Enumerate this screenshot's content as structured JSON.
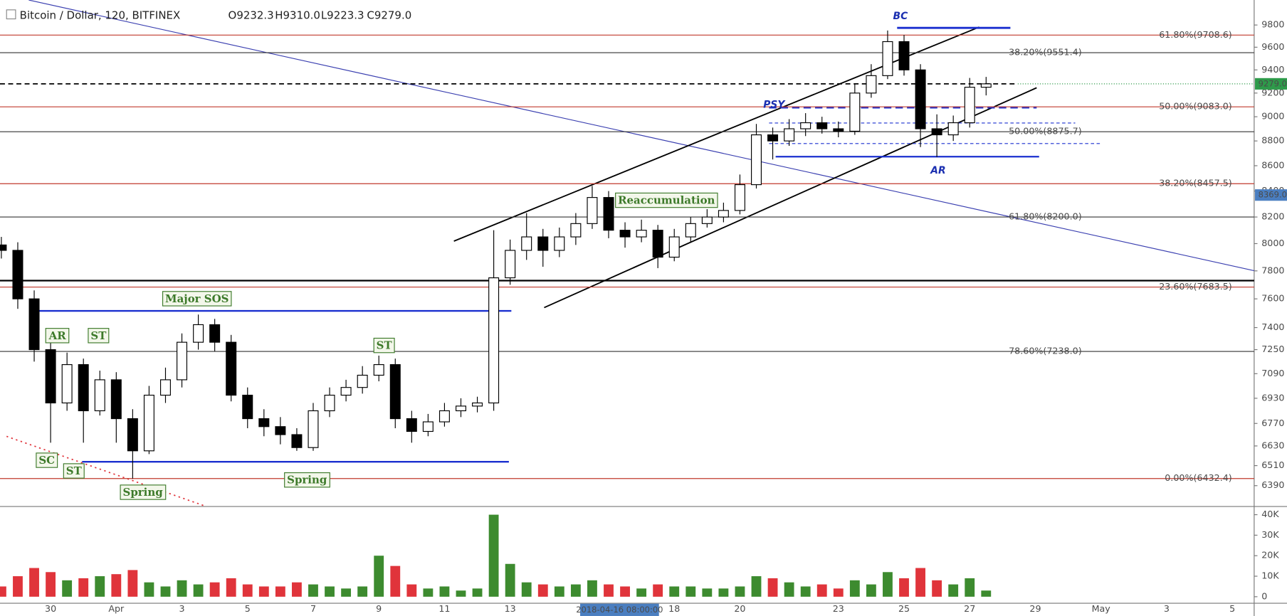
{
  "chart_data": [
    {
      "type": "candlestick",
      "title": "Bitcoin / Dollar, 120, BITFINEX",
      "ohlc": [
        "O9232.3",
        "H9310.0",
        "L9223.3",
        "C9279.0"
      ],
      "crosshair_label": "2018-04-16 08:00:00",
      "log_scale": true,
      "ylim": [
        6270,
        10030
      ],
      "yticks": [
        9800,
        9600,
        9400,
        9200,
        9000,
        8800,
        8600,
        8400,
        8200,
        8000,
        7800,
        7600,
        7400,
        7250,
        7090,
        6930,
        6770,
        6630,
        6510,
        6390
      ],
      "xlim": [
        "2018-03-28 11:00",
        "2018-05-05 16:00"
      ],
      "xticks": [
        {
          "value": "2018-03-30 00:00",
          "label": "30"
        },
        {
          "value": "2018-04-01 00:00",
          "label": "Apr"
        },
        {
          "value": "2018-04-03 00:00",
          "label": "3"
        },
        {
          "value": "2018-04-05 00:00",
          "label": "5"
        },
        {
          "value": "2018-04-07 00:00",
          "label": "7"
        },
        {
          "value": "2018-04-09 00:00",
          "label": "9"
        },
        {
          "value": "2018-04-11 00:00",
          "label": "11"
        },
        {
          "value": "2018-04-13 00:00",
          "label": "13"
        },
        {
          "value": "2018-04-18 00:00",
          "label": "18"
        },
        {
          "value": "2018-04-20 00:00",
          "label": "20"
        },
        {
          "value": "2018-04-23 00:00",
          "label": "23"
        },
        {
          "value": "2018-04-25 00:00",
          "label": "25"
        },
        {
          "value": "2018-04-27 00:00",
          "label": "27"
        },
        {
          "value": "2018-04-29 00:00",
          "label": "29"
        },
        {
          "value": "2018-05-01 00:00",
          "label": "May"
        },
        {
          "value": "2018-05-03 00:00",
          "label": "3"
        },
        {
          "value": "2018-05-05 00:00",
          "label": "5"
        }
      ],
      "up_color": "#ffffff",
      "down_color": "#000000",
      "x": [
        "2018-03-28 12:00",
        "2018-03-29 00:00",
        "2018-03-29 12:00",
        "2018-03-30 00:00",
        "2018-03-30 12:00",
        "2018-03-31 00:00",
        "2018-03-31 12:00",
        "2018-04-01 00:00",
        "2018-04-01 12:00",
        "2018-04-02 00:00",
        "2018-04-02 12:00",
        "2018-04-03 00:00",
        "2018-04-03 12:00",
        "2018-04-04 00:00",
        "2018-04-04 12:00",
        "2018-04-05 00:00",
        "2018-04-05 12:00",
        "2018-04-06 00:00",
        "2018-04-06 12:00",
        "2018-04-07 00:00",
        "2018-04-07 12:00",
        "2018-04-08 00:00",
        "2018-04-08 12:00",
        "2018-04-09 00:00",
        "2018-04-09 12:00",
        "2018-04-10 00:00",
        "2018-04-10 12:00",
        "2018-04-11 00:00",
        "2018-04-11 12:00",
        "2018-04-12 00:00",
        "2018-04-12 12:00",
        "2018-04-13 00:00",
        "2018-04-13 12:00",
        "2018-04-14 00:00",
        "2018-04-14 12:00",
        "2018-04-15 00:00",
        "2018-04-15 12:00",
        "2018-04-16 00:00",
        "2018-04-16 12:00",
        "2018-04-17 00:00",
        "2018-04-17 12:00",
        "2018-04-18 00:00",
        "2018-04-18 12:00",
        "2018-04-19 00:00",
        "2018-04-19 12:00",
        "2018-04-20 00:00",
        "2018-04-20 12:00",
        "2018-04-21 00:00",
        "2018-04-21 12:00",
        "2018-04-22 00:00",
        "2018-04-22 12:00",
        "2018-04-23 00:00",
        "2018-04-23 12:00",
        "2018-04-24 00:00",
        "2018-04-24 12:00",
        "2018-04-25 00:00",
        "2018-04-25 12:00",
        "2018-04-26 00:00",
        "2018-04-26 12:00",
        "2018-04-27 00:00",
        "2018-04-27 12:00"
      ],
      "open": [
        7990,
        7950,
        7600,
        7250,
        6900,
        7150,
        6850,
        7050,
        6800,
        6600,
        6950,
        7050,
        7300,
        7420,
        7300,
        6950,
        6800,
        6750,
        6700,
        6620,
        6850,
        6950,
        7000,
        7080,
        7150,
        6800,
        6720,
        6780,
        6850,
        6880,
        6900,
        7750,
        7950,
        8050,
        7950,
        8050,
        8150,
        8350,
        8100,
        8050,
        8100,
        7900,
        8050,
        8150,
        8200,
        8250,
        8450,
        8850,
        8800,
        8900,
        8950,
        8900,
        8880,
        9200,
        9350,
        9650,
        9400,
        8900,
        8850,
        8950,
        9250
      ],
      "high": [
        8050,
        8010,
        7660,
        7300,
        7230,
        7190,
        7110,
        7100,
        6860,
        7010,
        7130,
        7360,
        7490,
        7460,
        7350,
        7000,
        6860,
        6810,
        6740,
        6900,
        7000,
        7050,
        7140,
        7210,
        7190,
        6850,
        6830,
        6900,
        6930,
        6940,
        8100,
        8030,
        8230,
        8110,
        8120,
        8230,
        8440,
        8400,
        8160,
        8180,
        8140,
        8110,
        8200,
        8260,
        8310,
        8530,
        8940,
        8910,
        8980,
        9030,
        9000,
        8960,
        9280,
        9450,
        9750,
        9710,
        9450,
        9020,
        9010,
        9330,
        9339
      ],
      "low": [
        7890,
        7530,
        7170,
        6650,
        6850,
        6650,
        6820,
        6650,
        6432,
        6580,
        6900,
        7000,
        7250,
        7240,
        6910,
        6740,
        6690,
        6640,
        6600,
        6600,
        6810,
        6910,
        6960,
        7040,
        6740,
        6650,
        6690,
        6750,
        6810,
        6840,
        6850,
        7700,
        7880,
        7830,
        7900,
        7990,
        8110,
        8040,
        7970,
        8010,
        7820,
        7870,
        8010,
        8120,
        8160,
        8220,
        8420,
        8650,
        8760,
        8840,
        8860,
        8830,
        8850,
        9160,
        9320,
        9350,
        8750,
        8670,
        8800,
        8910,
        9180
      ],
      "close": [
        7950,
        7600,
        7250,
        6900,
        7150,
        6850,
        7050,
        6800,
        6600,
        6950,
        7050,
        7300,
        7420,
        7300,
        6950,
        6800,
        6750,
        6700,
        6620,
        6850,
        6950,
        7000,
        7080,
        7150,
        6800,
        6720,
        6780,
        6850,
        6880,
        6900,
        7750,
        7950,
        8050,
        7950,
        8050,
        8150,
        8350,
        8100,
        8050,
        8100,
        7900,
        8050,
        8150,
        8200,
        8250,
        8450,
        8850,
        8800,
        8900,
        8950,
        8900,
        8880,
        9200,
        9350,
        9650,
        9400,
        8900,
        8850,
        8950,
        9250,
        9279
      ],
      "fib_levels": [
        {
          "value": 9708.6,
          "label": "61.80%(9708.6)",
          "color": "#c0392b"
        },
        {
          "value": 9551.4,
          "label": "38.20%(9551.4)",
          "color": "#333333"
        },
        {
          "value": 9083.0,
          "label": "50.00%(9083.0)",
          "color": "#c0392b"
        },
        {
          "value": 8875.7,
          "label": "50.00%(8875.7)",
          "color": "#333333"
        },
        {
          "value": 8457.5,
          "label": "38.20%(8457.5)",
          "color": "#c0392b"
        },
        {
          "value": 8200.0,
          "label": "61.80%(8200.0)",
          "color": "#333333"
        },
        {
          "value": 7683.5,
          "label": "23.60%(7683.5)",
          "color": "#c0392b"
        },
        {
          "value": 7238.0,
          "label": "78.60%(7238.0)",
          "color": "#333333"
        },
        {
          "value": 6432.4,
          "label": "0.00%(6432.4)",
          "color": "#c0392b"
        }
      ],
      "support_line": 7730,
      "price_markers": [
        {
          "value": 9279,
          "label": "9279.0",
          "color": "#2e9a4a"
        },
        {
          "value": 8369,
          "label": "8369.0",
          "color": "#4a7ec0"
        }
      ],
      "annotations": [
        "AR",
        "ST",
        "Major SOS",
        "ST",
        "Reaccumulation",
        "SC",
        "ST",
        "Spring",
        "Spring"
      ],
      "wyckoff_labels": [
        "BC",
        "PSY",
        "AR"
      ]
    },
    {
      "type": "bar",
      "ylim": [
        -3000,
        43000
      ],
      "yticks": [
        {
          "value": 40000,
          "label": "40K"
        },
        {
          "value": 30000,
          "label": "30K"
        },
        {
          "value": 20000,
          "label": "20K"
        },
        {
          "value": 10000,
          "label": "10K"
        },
        0
      ],
      "up_color": "#3d8b2f",
      "down_color": "#e0343b",
      "values": [
        5000,
        10000,
        14000,
        12000,
        8000,
        9000,
        10000,
        11000,
        13000,
        7000,
        5000,
        8000,
        6000,
        7000,
        9000,
        6000,
        5000,
        5000,
        7000,
        6000,
        5000,
        4000,
        5000,
        20000,
        15000,
        6000,
        4000,
        5000,
        3000,
        4000,
        40000,
        16000,
        7000,
        6000,
        5000,
        6000,
        8000,
        6000,
        5000,
        4000,
        6000,
        5000,
        5000,
        4000,
        4000,
        5000,
        10000,
        9000,
        7000,
        5000,
        6000,
        4000,
        8000,
        6000,
        12000,
        9000,
        14000,
        8000,
        6000,
        9000,
        3000
      ]
    }
  ]
}
